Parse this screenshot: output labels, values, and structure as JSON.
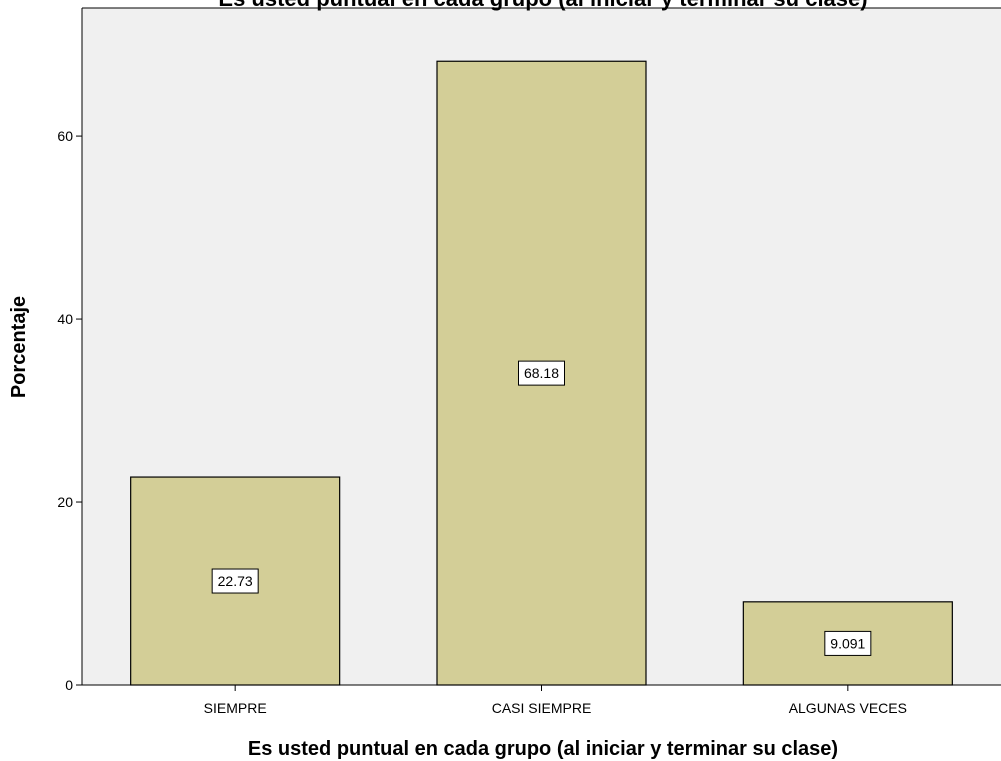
{
  "chart_data": {
    "type": "bar",
    "title": "Es usted puntual en cada grupo (al iniciar y terminar su clase)",
    "xlabel": "Es usted puntual en cada grupo (al iniciar y terminar su clase)",
    "ylabel": "Porcentaje",
    "categories": [
      "SIEMPRE",
      "CASI SIEMPRE",
      "ALGUNAS VECES"
    ],
    "values": [
      22.73,
      68.18,
      9.091
    ],
    "value_labels": [
      "22.73",
      "68.18",
      "9.091"
    ],
    "yticks": [
      0,
      20,
      40,
      60
    ],
    "ylim": [
      0,
      74
    ],
    "grid": false,
    "colors": {
      "plot_background": "#f0f0f0",
      "bar_fill": "#d3ce97",
      "bar_stroke": "#000000",
      "label_box_fill": "#ffffff"
    }
  }
}
